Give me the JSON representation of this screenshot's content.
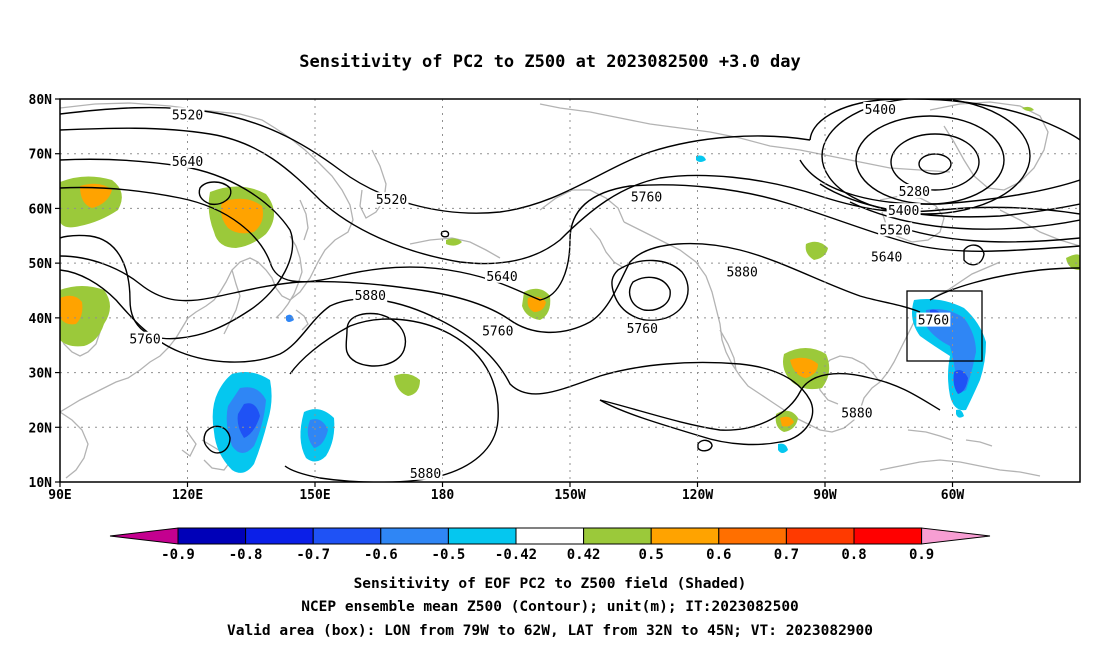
{
  "title": "Sensitivity of PC2 to Z500 at 2023082500 +3.0 day",
  "lat_labels": [
    "80N",
    "70N",
    "60N",
    "50N",
    "40N",
    "30N",
    "20N",
    "10N"
  ],
  "lon_labels": [
    "90E",
    "120E",
    "150E",
    "180",
    "150W",
    "120W",
    "90W",
    "60W"
  ],
  "contour_labels": [
    {
      "text": "5520",
      "lon": 120.0,
      "lat": 77.0
    },
    {
      "text": "5640",
      "lon": 120.0,
      "lat": 68.5
    },
    {
      "text": "5520",
      "lon": 168.0,
      "lat": 61.5
    },
    {
      "text": "5640",
      "lon": 194.0,
      "lat": 47.5
    },
    {
      "text": "5760",
      "lon": 193.0,
      "lat": 37.5
    },
    {
      "text": "5760",
      "lon": 227.0,
      "lat": 38.0
    },
    {
      "text": "5760",
      "lon": 228.0,
      "lat": 62.0
    },
    {
      "text": "5880",
      "lon": 250.5,
      "lat": 48.3
    },
    {
      "text": "5880",
      "lon": 163.0,
      "lat": 44.0
    },
    {
      "text": "5760",
      "lon": 110.0,
      "lat": 36.0
    },
    {
      "text": "5880",
      "lon": 176.0,
      "lat": 11.5
    },
    {
      "text": "5880",
      "lon": 277.5,
      "lat": 22.5
    },
    {
      "text": "5400",
      "lon": 283.0,
      "lat": 78.0
    },
    {
      "text": "5280",
      "lon": 291.0,
      "lat": 63.0
    },
    {
      "text": "5400",
      "lon": 288.5,
      "lat": 59.5
    },
    {
      "text": "5520",
      "lon": 286.5,
      "lat": 56.0
    },
    {
      "text": "5640",
      "lon": 284.5,
      "lat": 51.0
    },
    {
      "text": "5760",
      "lon": 295.5,
      "lat": 39.5
    }
  ],
  "colorbar": {
    "labels": [
      "-0.9",
      "-0.8",
      "-0.7",
      "-0.6",
      "-0.5",
      "-0.42",
      "0.42",
      "0.5",
      "0.6",
      "0.7",
      "0.8",
      "0.9"
    ],
    "colors": [
      "#c4008f",
      "#0000b8",
      "#0b1fe8",
      "#1f52f5",
      "#2f86f5",
      "#05c7ef",
      "#ffffff",
      "#9bc93a",
      "#ffa300",
      "#ff6f00",
      "#ff3a00",
      "#ff0000",
      "#f79ed3"
    ]
  },
  "valid_box": {
    "lon_min": -79,
    "lon_max": -62,
    "lat_min": 32,
    "lat_max": 45
  },
  "footer": {
    "line1": "Sensitivity of EOF PC2 to Z500 field (Shaded)",
    "line2": "NCEP ensemble mean Z500 (Contour); unit(m); IT:2023082500",
    "line3": "Valid area (box): LON from 79W to 62W, LAT from 32N to 45N; VT: 2023082900"
  }
}
